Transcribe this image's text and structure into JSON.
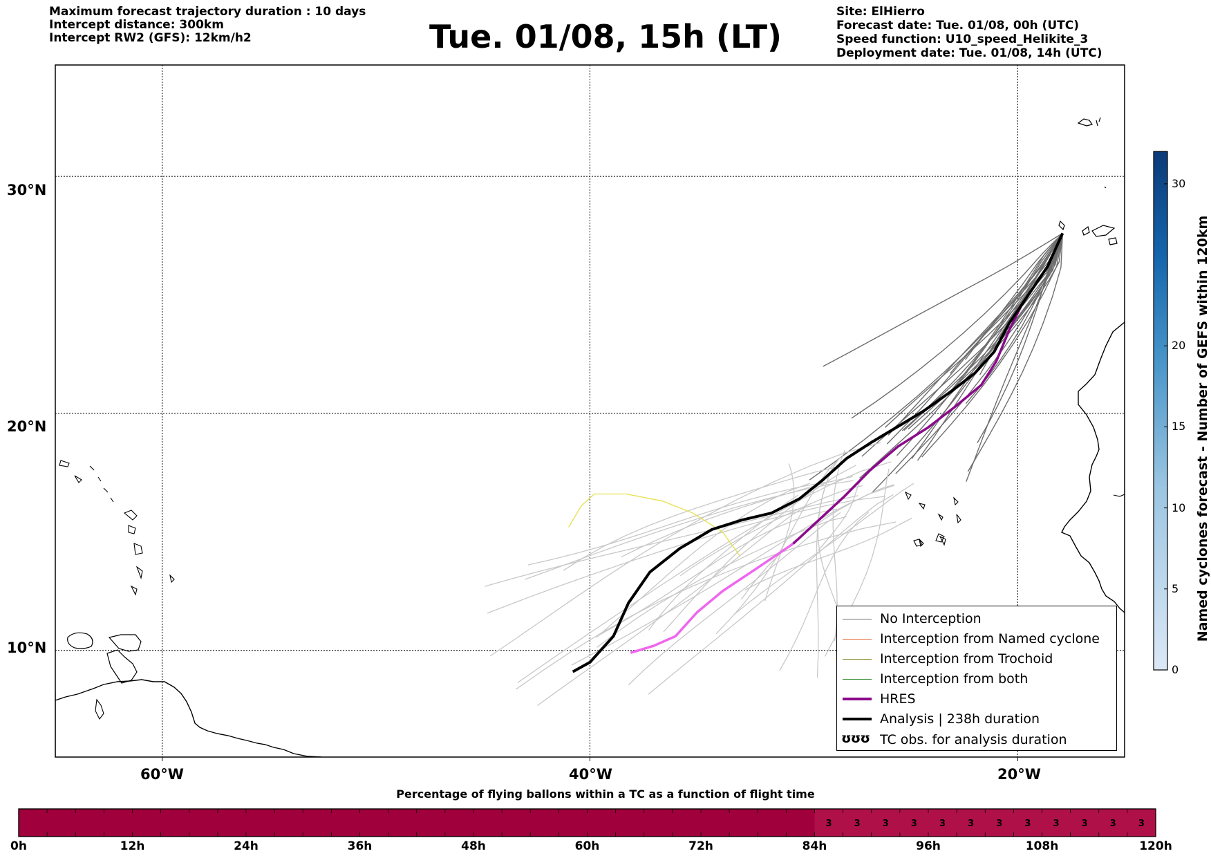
{
  "header": {
    "left_lines": [
      "Maximum forecast trajectory duration : 10 days",
      "Intercept distance: 300km",
      "Intercept RW2 (GFS):  12km/h2"
    ],
    "title": "Tue. 01/08, 15h (LT)",
    "right_lines": [
      "Site: ElHierro",
      "Forecast date: Tue. 01/08, 00h (UTC)",
      "Speed function: U10_speed_Helikite_3",
      "Deployment date: Tue. 01/08, 14h (UTC)"
    ]
  },
  "colors": {
    "no_interception": "#6e6e6e",
    "trajectory_light": "#c8c8c8",
    "named_cyclone": "#e8632a",
    "trochoid": "#808020",
    "both": "#2a8a2a",
    "hres": "#8b0a8b",
    "hres_light": "#ee66ee",
    "analysis": "#000000",
    "yellow_track": "#e6e04a",
    "bar_fill": "#a0003c",
    "bar_fill_right": "#b01048"
  },
  "legend": {
    "items": [
      {
        "label": "No Interception",
        "style": "thin-gray"
      },
      {
        "label": "Interception from Named cyclone",
        "style": "thin-orange"
      },
      {
        "label": "Interception from Trochoid",
        "style": "thin-olive"
      },
      {
        "label": "Interception from both",
        "style": "thin-green"
      },
      {
        "label": "HRES",
        "style": "thick-purple"
      },
      {
        "label": "Analysis | 238h duration",
        "style": "thick-black"
      },
      {
        "label": "TC obs. for analysis duration",
        "style": "tc-symbols"
      }
    ],
    "tc_symbol_text": "ʊʊʊ"
  },
  "map": {
    "lat_labels": [
      "30°N",
      "20°N",
      "10°N"
    ],
    "lon_labels": [
      "60°W",
      "40°W",
      "20°W"
    ],
    "lat_values": [
      30,
      20,
      10
    ],
    "lon_values": [
      -60,
      -40,
      -20
    ],
    "lon_range": [
      -65,
      -15
    ],
    "lat_range": [
      5.5,
      34.7
    ]
  },
  "colorbar": {
    "title": "Named cyclones forecast - Number of GEFS within 120km",
    "ticks": [
      0,
      5,
      10,
      15,
      20,
      30
    ],
    "range": [
      0,
      32
    ]
  },
  "time_bar": {
    "title": "Percentage of flying ballons within a TC as a function of flight time",
    "hour_labels": [
      "0h",
      "12h",
      "24h",
      "36h",
      "48h",
      "60h",
      "72h",
      "84h",
      "96h",
      "108h",
      "120h"
    ],
    "hour_values": [
      0,
      12,
      24,
      36,
      48,
      60,
      72,
      84,
      96,
      108,
      120
    ],
    "percent_cells": [
      {
        "hour": 87,
        "value": "3"
      },
      {
        "hour": 90,
        "value": "3"
      },
      {
        "hour": 93,
        "value": "3"
      },
      {
        "hour": 96,
        "value": "3"
      },
      {
        "hour": 99,
        "value": "3"
      },
      {
        "hour": 102,
        "value": "3"
      },
      {
        "hour": 105,
        "value": "3"
      },
      {
        "hour": 108,
        "value": "3"
      },
      {
        "hour": 111,
        "value": "3"
      },
      {
        "hour": 114,
        "value": "3"
      },
      {
        "hour": 117,
        "value": "3"
      },
      {
        "hour": 120,
        "value": "3"
      }
    ]
  },
  "chart_data": {
    "type": "line",
    "title": "Tue. 01/08, 15h (LT)",
    "xlabel": "",
    "ylabel": "",
    "xlim": [
      -65,
      -15
    ],
    "ylim": [
      5.5,
      34.7
    ],
    "grid": true,
    "legend_position": "bottom-right",
    "series": [
      {
        "name": "Analysis | 238h duration",
        "points": [
          [
            -40.8,
            9.1
          ],
          [
            -40,
            9.5
          ],
          [
            -38.9,
            10.6
          ],
          [
            -38.2,
            12
          ],
          [
            -37.2,
            13.3
          ],
          [
            -35.8,
            14.3
          ],
          [
            -34.3,
            15.1
          ],
          [
            -32.9,
            15.5
          ],
          [
            -31.5,
            15.8
          ],
          [
            -30.2,
            16.4
          ],
          [
            -29.1,
            17.2
          ],
          [
            -28,
            18.1
          ],
          [
            -26.8,
            18.8
          ],
          [
            -25.5,
            19.5
          ],
          [
            -24.4,
            20.1
          ],
          [
            -23,
            21
          ],
          [
            -22,
            21.7
          ],
          [
            -21.1,
            22.6
          ],
          [
            -20.4,
            23.8
          ],
          [
            -19.5,
            25
          ],
          [
            -18.6,
            26.2
          ],
          [
            -17.9,
            27.6
          ]
        ]
      },
      {
        "name": "HRES",
        "points": [
          [
            -38.1,
            9.9
          ],
          [
            -37,
            10.2
          ],
          [
            -36,
            10.6
          ],
          [
            -35,
            11.6
          ],
          [
            -33.8,
            12.5
          ],
          [
            -32.3,
            13.4
          ],
          [
            -30.5,
            14.5
          ],
          [
            -29.3,
            15.5
          ],
          [
            -28.1,
            16.5
          ],
          [
            -26.9,
            17.6
          ],
          [
            -25.6,
            18.6
          ],
          [
            -24.2,
            19.4
          ],
          [
            -22.9,
            20.3
          ],
          [
            -21.7,
            21.2
          ],
          [
            -21,
            22.2
          ],
          [
            -20.4,
            23.5
          ],
          [
            -19.8,
            24.6
          ]
        ]
      }
    ]
  }
}
